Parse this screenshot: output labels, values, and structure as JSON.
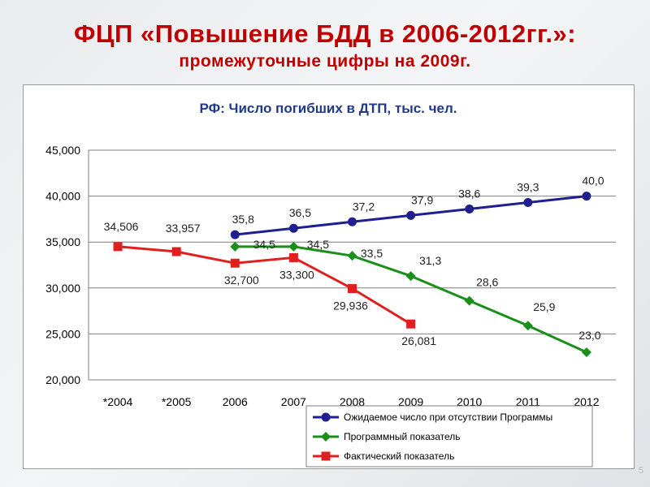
{
  "slide": {
    "title": "ФЦП «Повышение БДД в 2006-2012гг.»:",
    "subtitle": "промежуточные цифры на 2009г.",
    "page_number": "5"
  },
  "chart_data": {
    "type": "line",
    "title": "РФ: Число погибших в ДТП, тыс. чел.",
    "xlabel": "",
    "ylabel": "",
    "categories": [
      "*2004",
      "*2005",
      "2006",
      "2007",
      "2008",
      "2009",
      "2010",
      "2011",
      "2012"
    ],
    "ylim": [
      20000,
      45000
    ],
    "yticks": [
      "20,000",
      "25,000",
      "30,000",
      "35,000",
      "40,000",
      "45,000"
    ],
    "yticks_values": [
      20000,
      25000,
      30000,
      35000,
      40000,
      45000
    ],
    "grid": true,
    "legend_position": "bottom-right",
    "series": [
      {
        "name": "Ожидаемое число при отсутствии Программы",
        "color": "#1f1f8f",
        "marker": "circle",
        "values": [
          null,
          null,
          35800,
          36500,
          37200,
          37900,
          38600,
          39300,
          40000
        ],
        "labels": [
          null,
          null,
          "35,8",
          "36,5",
          "37,2",
          "37,9",
          "38,6",
          "39,3",
          "40,0"
        ]
      },
      {
        "name": "Программный показатель",
        "color": "#1a8f1a",
        "marker": "diamond",
        "values": [
          null,
          null,
          34500,
          34500,
          33500,
          31300,
          28600,
          25900,
          23000
        ],
        "labels": [
          null,
          null,
          "34,5",
          "34,5",
          "33,5",
          "31,3",
          "28,6",
          "25,9",
          "23,0"
        ]
      },
      {
        "name": "Фактический показатель",
        "color": "#e02020",
        "marker": "square",
        "values": [
          34506,
          33957,
          32700,
          33300,
          29936,
          26081,
          null,
          null,
          null
        ],
        "labels": [
          "34,506",
          "33,957",
          "32,700",
          "33,300",
          "29,936",
          "26,081",
          null,
          null,
          null
        ]
      }
    ]
  }
}
